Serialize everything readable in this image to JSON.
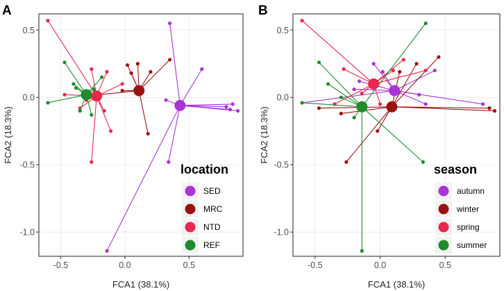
{
  "chart_data": [
    {
      "type": "scatter",
      "panel_label": "A",
      "xlabel": "FCA1 (38.1%)",
      "ylabel": "FCA2 (18.3%)",
      "xlim": [
        -0.67,
        0.92
      ],
      "ylim": [
        -1.18,
        0.62
      ],
      "x_ticks": [
        -0.5,
        0.0,
        0.5
      ],
      "x_tick_labels": [
        "-0.5",
        "0.0",
        "0.5"
      ],
      "y_ticks": [
        0.5,
        0.0,
        -0.5,
        -1.0
      ],
      "y_tick_labels": [
        "0.5",
        "0.0",
        "-0.5",
        "-1.0"
      ],
      "legend_title": "location",
      "legend_position": "bottom-right",
      "series": [
        {
          "name": "SED",
          "color": "#a835d4",
          "centroid": [
            0.43,
            -0.06
          ],
          "points": [
            [
              0.35,
              0.55
            ],
            [
              0.6,
              0.21
            ],
            [
              0.79,
              -0.07
            ],
            [
              0.82,
              -0.09
            ],
            [
              0.88,
              -0.1
            ],
            [
              0.84,
              -0.05
            ],
            [
              0.34,
              -0.48
            ],
            [
              0.32,
              -0.02
            ],
            [
              -0.14,
              -1.14
            ]
          ]
        },
        {
          "name": "MRC",
          "color": "#9b1212",
          "centroid": [
            0.11,
            0.05
          ],
          "points": [
            [
              0.2,
              0.19
            ],
            [
              0.35,
              0.28
            ],
            [
              0.18,
              -0.27
            ],
            [
              0.02,
              0.24
            ],
            [
              0.1,
              0.25
            ],
            [
              -0.02,
              0.05
            ],
            [
              -0.2,
              0.02
            ],
            [
              0.05,
              0.18
            ]
          ]
        },
        {
          "name": "NTD",
          "color": "#e8284e",
          "centroid": [
            -0.22,
            0.01
          ],
          "points": [
            [
              -0.6,
              0.57
            ],
            [
              -0.14,
              0.19
            ],
            [
              -0.26,
              -0.48
            ],
            [
              -0.26,
              0.21
            ],
            [
              -0.11,
              -0.25
            ],
            [
              -0.35,
              -0.08
            ],
            [
              -0.16,
              -0.1
            ],
            [
              -0.47,
              0.02
            ],
            [
              -0.3,
              -0.02
            ],
            [
              -0.02,
              0.1
            ]
          ]
        },
        {
          "name": "REF",
          "color": "#1f8b2b",
          "centroid": [
            -0.3,
            0.02
          ],
          "points": [
            [
              -0.47,
              0.26
            ],
            [
              -0.6,
              -0.04
            ],
            [
              -0.38,
              0.07
            ],
            [
              -0.4,
              0.1
            ],
            [
              -0.24,
              0.06
            ],
            [
              -0.18,
              0.15
            ],
            [
              -0.26,
              -0.13
            ],
            [
              -0.35,
              -0.1
            ]
          ]
        }
      ]
    },
    {
      "type": "scatter",
      "panel_label": "B",
      "xlabel": "FCA1 (38.1%)",
      "ylabel": "FCA2 (18.3%)",
      "xlim": [
        -0.67,
        0.92
      ],
      "ylim": [
        -1.18,
        0.62
      ],
      "x_ticks": [
        -0.5,
        0.0,
        0.5
      ],
      "x_tick_labels": [
        "-0.5",
        "0.0",
        "0.5"
      ],
      "y_ticks": [
        0.5,
        0.0,
        -0.5,
        -1.0
      ],
      "y_tick_labels": [
        "0.5",
        "0.0",
        "-0.5",
        "-1.0"
      ],
      "legend_title": "season",
      "legend_position": "bottom-right",
      "series": [
        {
          "name": "autumn",
          "color": "#a835d4",
          "centroid": [
            0.11,
            0.05
          ],
          "points": [
            [
              0.79,
              -0.05
            ],
            [
              0.42,
              0.2
            ],
            [
              0.3,
              0.02
            ],
            [
              0.02,
              0.19
            ],
            [
              -0.05,
              0.25
            ],
            [
              -0.16,
              0.12
            ],
            [
              -0.6,
              -0.04
            ],
            [
              0.35,
              -0.05
            ],
            [
              -0.2,
              0.06
            ]
          ]
        },
        {
          "name": "winter",
          "color": "#9b1212",
          "centroid": [
            0.09,
            -0.07
          ],
          "points": [
            [
              0.88,
              -0.1
            ],
            [
              0.84,
              -0.08
            ],
            [
              0.45,
              0.3
            ],
            [
              0.28,
              0.25
            ],
            [
              -0.26,
              -0.48
            ],
            [
              -0.47,
              -0.08
            ],
            [
              0.15,
              0.19
            ],
            [
              -0.02,
              -0.25
            ],
            [
              -0.3,
              -0.12
            ]
          ]
        },
        {
          "name": "spring",
          "color": "#e8284e",
          "centroid": [
            -0.05,
            0.1
          ],
          "points": [
            [
              -0.6,
              0.57
            ],
            [
              0.35,
              0.2
            ],
            [
              0.18,
              0.28
            ],
            [
              -0.28,
              0.21
            ],
            [
              -0.14,
              0.03
            ],
            [
              -0.35,
              -0.05
            ],
            [
              0.1,
              0.2
            ],
            [
              0.0,
              -0.05
            ]
          ]
        },
        {
          "name": "summer",
          "color": "#1f8b2b",
          "centroid": [
            -0.14,
            -0.07
          ],
          "points": [
            [
              0.35,
              0.55
            ],
            [
              -0.47,
              0.26
            ],
            [
              -0.14,
              -1.14
            ],
            [
              0.33,
              -0.48
            ],
            [
              -0.4,
              0.1
            ],
            [
              -0.6,
              -0.04
            ],
            [
              -0.2,
              -0.15
            ],
            [
              -0.3,
              0.0
            ]
          ]
        }
      ]
    }
  ]
}
